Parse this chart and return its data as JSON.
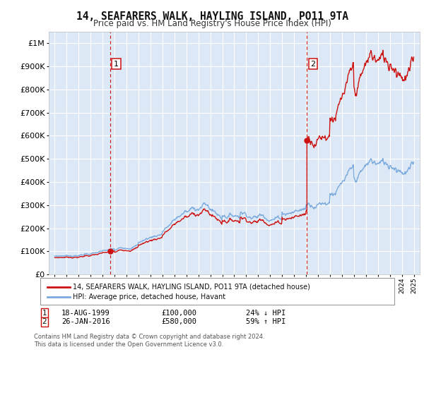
{
  "title": "14, SEAFARERS WALK, HAYLING ISLAND, PO11 9TA",
  "subtitle": "Price paid vs. HM Land Registry's House Price Index (HPI)",
  "legend_line1": "14, SEAFARERS WALK, HAYLING ISLAND, PO11 9TA (detached house)",
  "legend_line2": "HPI: Average price, detached house, Havant",
  "footnote": "Contains HM Land Registry data © Crown copyright and database right 2024.\nThis data is licensed under the Open Government Licence v3.0.",
  "sale1_info": "18-AUG-1999",
  "sale1_price": "£100,000",
  "sale1_hpi": "24% ↓ HPI",
  "sale2_info": "26-JAN-2016",
  "sale2_price": "£580,000",
  "sale2_hpi": "59% ↑ HPI",
  "sale1_year": 1999.63,
  "sale1_value": 100000,
  "sale2_year": 2016.07,
  "sale2_value": 580000,
  "fig_bg_color": "#ffffff",
  "plot_bg_color": "#dce8f5",
  "grid_color": "#ffffff",
  "red_color": "#cc1111",
  "blue_color": "#7aaadd",
  "dashed_line_color": "#cc1111",
  "annotation_box_color": "#cc1111"
}
